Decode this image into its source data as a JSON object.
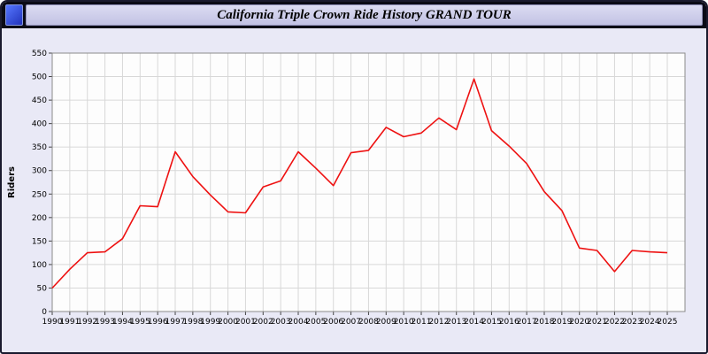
{
  "window": {
    "title": "California Triple Crown Ride History GRAND TOUR"
  },
  "chart_data": {
    "type": "line",
    "title": "California Triple Crown Ride History GRAND TOUR",
    "xlabel": "",
    "ylabel": "Riders",
    "ylim": [
      0,
      550
    ],
    "ytick_step": 50,
    "grid": true,
    "legend_position": "none",
    "line_color": "#ee1111",
    "plot_bg": "#fdfdfd",
    "grid_color": "#d8d8d8",
    "border_color": "#8a8a8a",
    "outer_bg": "#e9e9f6",
    "categories": [
      "1990",
      "1991",
      "1992",
      "1993",
      "1994",
      "1995",
      "1996",
      "1997",
      "1998",
      "1999",
      "2000",
      "2001",
      "2002",
      "2003",
      "2004",
      "2005",
      "2006",
      "2007",
      "2008",
      "2009",
      "2010",
      "2011",
      "2012",
      "2013",
      "2014",
      "2015",
      "2016",
      "2017",
      "2018",
      "2019",
      "2020",
      "2021",
      "2022",
      "2023",
      "2024",
      "2025"
    ],
    "values": [
      50,
      90,
      125,
      127,
      155,
      225,
      223,
      340,
      287,
      248,
      212,
      210,
      265,
      278,
      340,
      305,
      268,
      338,
      343,
      392,
      372,
      380,
      412,
      387,
      495,
      385,
      352,
      315,
      255,
      215,
      135,
      130,
      85,
      130,
      127,
      125
    ]
  }
}
